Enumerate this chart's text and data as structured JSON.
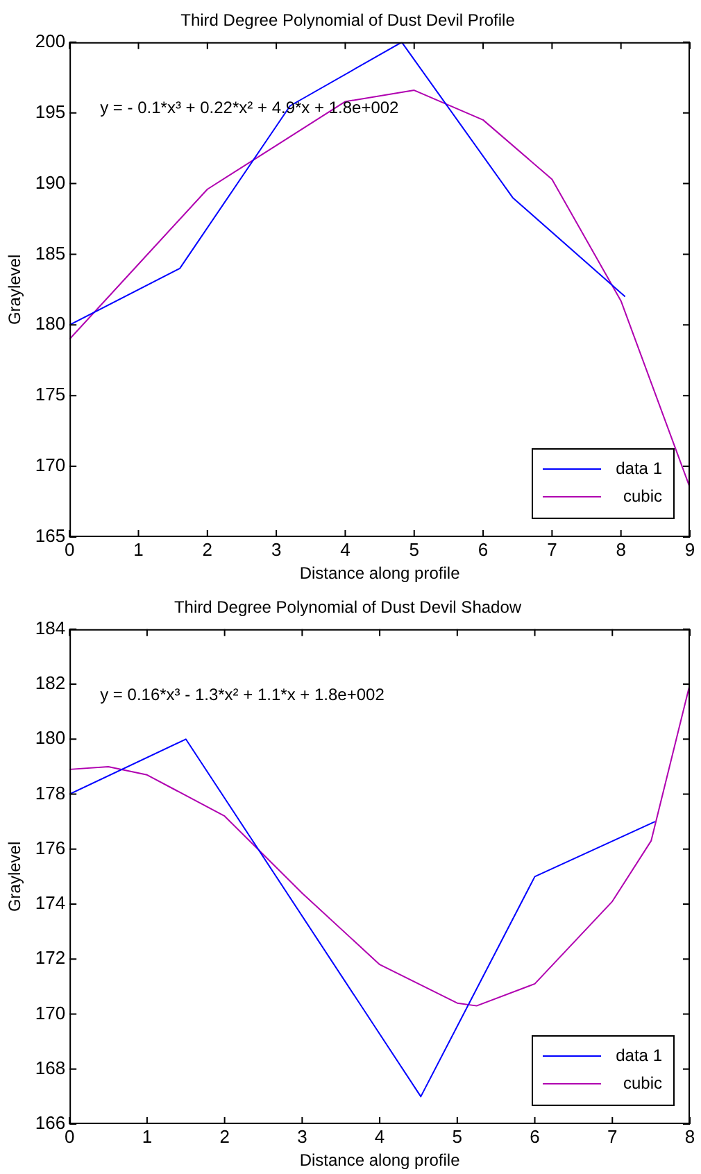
{
  "chart_data": [
    {
      "type": "line",
      "title": "Third Degree Polynomial of Dust Devil Profile",
      "xlabel": "Distance along profile",
      "ylabel": "Graylevel",
      "annotations": [
        "y = - 0.1*x³ + 0.22*x² + 4.9*x + 1.8e+002"
      ],
      "series": [
        {
          "name": "data 1",
          "color": "#0000ff",
          "x": [
            0,
            1.6,
            3.2,
            4.82,
            6.43,
            8.06
          ],
          "values": [
            180,
            184,
            195.5,
            200,
            189,
            182
          ]
        },
        {
          "name": "cubic",
          "color": "#b000b0",
          "x": [
            0,
            1,
            2,
            3,
            4,
            5,
            6,
            7,
            8,
            9
          ],
          "values": [
            179,
            184.3,
            189.6,
            192.7,
            195.8,
            196.6,
            194.5,
            190.3,
            181.7,
            168.5
          ]
        }
      ],
      "xlim": [
        0,
        9
      ],
      "xticks": [
        0,
        1,
        2,
        3,
        4,
        5,
        6,
        7,
        8,
        9
      ],
      "ylim": [
        165,
        200
      ],
      "yticks": [
        165,
        170,
        175,
        180,
        185,
        190,
        195,
        200
      ],
      "legend": "bottom right",
      "marker": "none",
      "line_style": "solid"
    },
    {
      "type": "line",
      "title": "Third Degree Polynomial of Dust Devil Shadow",
      "xlabel": "Distance along profile",
      "ylabel": "Graylevel",
      "annotations": [
        "y = 0.16*x³ - 1.3*x² + 1.1*x + 1.8e+002"
      ],
      "series": [
        {
          "name": "data 1",
          "color": "#0000ff",
          "x": [
            0,
            1.5,
            4.53,
            6,
            7.55
          ],
          "values": [
            178,
            180,
            167,
            175,
            177
          ]
        },
        {
          "name": "cubic",
          "color": "#b000b0",
          "x": [
            0,
            0.5,
            1,
            2,
            3,
            4,
            5,
            5.25,
            6,
            7,
            7.5,
            8
          ],
          "values": [
            178.9,
            179,
            178.7,
            177.2,
            174.4,
            171.8,
            170.4,
            170.3,
            171.1,
            174.1,
            176.3,
            182
          ]
        }
      ],
      "xlim": [
        0,
        8
      ],
      "xticks": [
        0,
        1,
        2,
        3,
        4,
        5,
        6,
        7,
        8
      ],
      "ylim": [
        166,
        184
      ],
      "yticks": [
        166,
        168,
        170,
        172,
        174,
        176,
        178,
        180,
        182,
        184
      ],
      "legend": "bottom right",
      "marker": "none",
      "line_style": "solid"
    }
  ]
}
